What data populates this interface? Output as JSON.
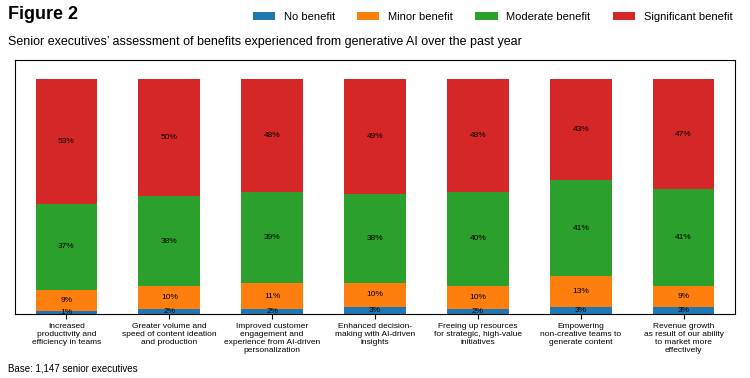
{
  "chart_data": {
    "type": "bar",
    "stacked": true,
    "data_labels": true,
    "tick_labels": "x",
    "legend": "upper right",
    "title": "Figure 2",
    "subtitle": "Senior executives’ assessment of benefits experienced from generative AI over the past year",
    "annotations": [
      "Base: 1,147 senior executives"
    ],
    "categories": [
      "Increased\nproductivity and\nefficiency in teams",
      "Greater volume and\nspeed of content ideation\nand production",
      "Improved customer\nengagement and\nexperience from AI-driven\npersonalization",
      "Enhanced decision-\nmaking with AI-driven\ninsights",
      "Freeing up resources\nfor strategic, high-value\ninitiatives",
      "Empowering\nnon-creative teams to\ngenerate content",
      "Revenue growth\nas result of our ability\nto market more\neffectively"
    ],
    "series": [
      {
        "name": "No benefit",
        "values": [
          1,
          2,
          2,
          3,
          2,
          3,
          3
        ],
        "value_labels": [
          "1%",
          "2%",
          "2%",
          "3%",
          "2%",
          "3%",
          "3%"
        ]
      },
      {
        "name": "Minor benefit",
        "values": [
          9,
          10,
          11,
          10,
          10,
          13,
          9
        ],
        "value_labels": [
          "9%",
          "10%",
          "11%",
          "10%",
          "10%",
          "13%",
          "9%"
        ]
      },
      {
        "name": "Moderate benefit",
        "values": [
          37,
          38,
          39,
          38,
          40,
          41,
          41
        ],
        "value_labels": [
          "37%",
          "38%",
          "39%",
          "38%",
          "40%",
          "41%",
          "41%"
        ]
      },
      {
        "name": "Significant benefit",
        "values": [
          53,
          50,
          48,
          49,
          48,
          43,
          47
        ],
        "value_labels": [
          "53%",
          "50%",
          "48%",
          "49%",
          "48%",
          "43%",
          "47%"
        ]
      }
    ],
    "ylim": [
      0,
      108
    ]
  }
}
